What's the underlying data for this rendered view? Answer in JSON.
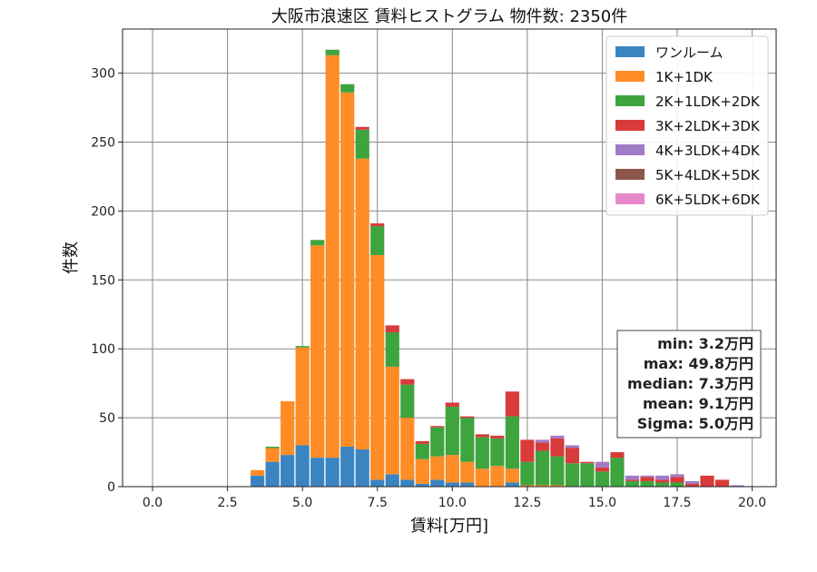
{
  "chart_data": {
    "type": "bar",
    "stacked": true,
    "title": "大阪市浪速区 賃料ヒストグラム  物件数: 2350件",
    "xlabel": "賃料[万円]",
    "ylabel": "件数",
    "xlim": [
      -1.0,
      20.8
    ],
    "ylim": [
      0,
      332
    ],
    "xticks": [
      0.0,
      2.5,
      5.0,
      7.5,
      10.0,
      12.5,
      15.0,
      17.5,
      20.0
    ],
    "xtick_labels": [
      "0.0",
      "2.5",
      "5.0",
      "7.5",
      "10.0",
      "12.5",
      "15.0",
      "17.5",
      "20.0"
    ],
    "yticks": [
      0,
      50,
      100,
      150,
      200,
      250,
      300
    ],
    "ytick_labels": [
      "0",
      "50",
      "100",
      "150",
      "200",
      "250",
      "300"
    ],
    "grid": true,
    "legend_position": "top-right",
    "bin_centers": [
      3.5,
      4.0,
      4.5,
      5.0,
      5.5,
      6.0,
      6.5,
      7.0,
      7.5,
      8.0,
      8.5,
      9.0,
      9.5,
      10.0,
      10.5,
      11.0,
      11.5,
      12.0,
      12.5,
      13.0,
      13.5,
      14.0,
      14.5,
      15.0,
      15.5,
      16.0,
      16.5,
      17.0,
      17.5,
      18.0,
      18.5,
      19.0,
      19.5
    ],
    "bin_width": 0.46,
    "series": [
      {
        "name": "ワンルーム",
        "color": "#3a84c1",
        "values": [
          8,
          18,
          23,
          30,
          21,
          21,
          29,
          27,
          5,
          9,
          5,
          2,
          5,
          3,
          3,
          0,
          0,
          3,
          0,
          0,
          0,
          0,
          0,
          0,
          0,
          0,
          0,
          0,
          0,
          0,
          0,
          0,
          0
        ]
      },
      {
        "name": "1K+1DK",
        "color": "#ff8c26",
        "values": [
          4,
          10,
          39,
          71,
          154,
          292,
          257,
          211,
          163,
          78,
          45,
          18,
          17,
          20,
          15,
          13,
          15,
          10,
          1,
          1,
          1,
          0,
          0,
          0,
          0,
          0,
          0,
          0,
          0,
          0,
          0,
          0,
          0
        ]
      },
      {
        "name": "2K+1LDK+2DK",
        "color": "#3ea43e",
        "values": [
          0,
          1,
          0,
          1,
          4,
          4,
          6,
          21,
          21,
          25,
          24,
          11,
          21,
          35,
          32,
          23,
          20,
          38,
          17,
          25,
          21,
          17,
          17,
          11,
          21,
          4,
          4,
          3,
          3,
          0,
          0,
          0,
          0
        ]
      },
      {
        "name": "3K+2LDK+3DK",
        "color": "#d93a3a",
        "values": [
          0,
          0,
          0,
          0,
          0,
          0,
          0,
          2,
          2,
          5,
          4,
          2,
          1,
          3,
          1,
          2,
          2,
          18,
          16,
          6,
          13,
          11,
          1,
          3,
          4,
          1,
          3,
          2,
          4,
          2,
          8,
          5,
          0
        ]
      },
      {
        "name": "4K+3LDK+4DK",
        "color": "#a07bc6",
        "values": [
          0,
          0,
          0,
          0,
          0,
          0,
          0,
          0,
          0,
          0,
          0,
          0,
          0,
          0,
          0,
          0,
          0,
          0,
          0,
          2,
          2,
          2,
          0,
          4,
          0,
          3,
          1,
          3,
          2,
          2,
          0,
          0,
          1
        ]
      },
      {
        "name": "5K+4LDK+5DK",
        "color": "#8c564b",
        "values": [
          0,
          0,
          0,
          0,
          0,
          0,
          0,
          0,
          0,
          0,
          0,
          0,
          0,
          0,
          0,
          0,
          0,
          0,
          0,
          0,
          0,
          0,
          0,
          0,
          0,
          0,
          0,
          0,
          0,
          0,
          0,
          0,
          0
        ]
      },
      {
        "name": "6K+5LDK+6DK",
        "color": "#e587c9",
        "values": [
          0,
          0,
          0,
          0,
          0,
          0,
          0,
          0,
          0,
          0,
          0,
          0,
          0,
          0,
          0,
          0,
          0,
          0,
          0,
          0,
          0,
          0,
          0,
          0,
          0,
          0,
          0,
          0,
          0,
          0,
          0,
          0,
          0
        ]
      }
    ],
    "annotation": [
      "min: 3.2万円",
      "max: 49.8万円",
      "median: 7.3万円",
      "mean: 9.1万円",
      "Sigma: 5.0万円"
    ]
  }
}
